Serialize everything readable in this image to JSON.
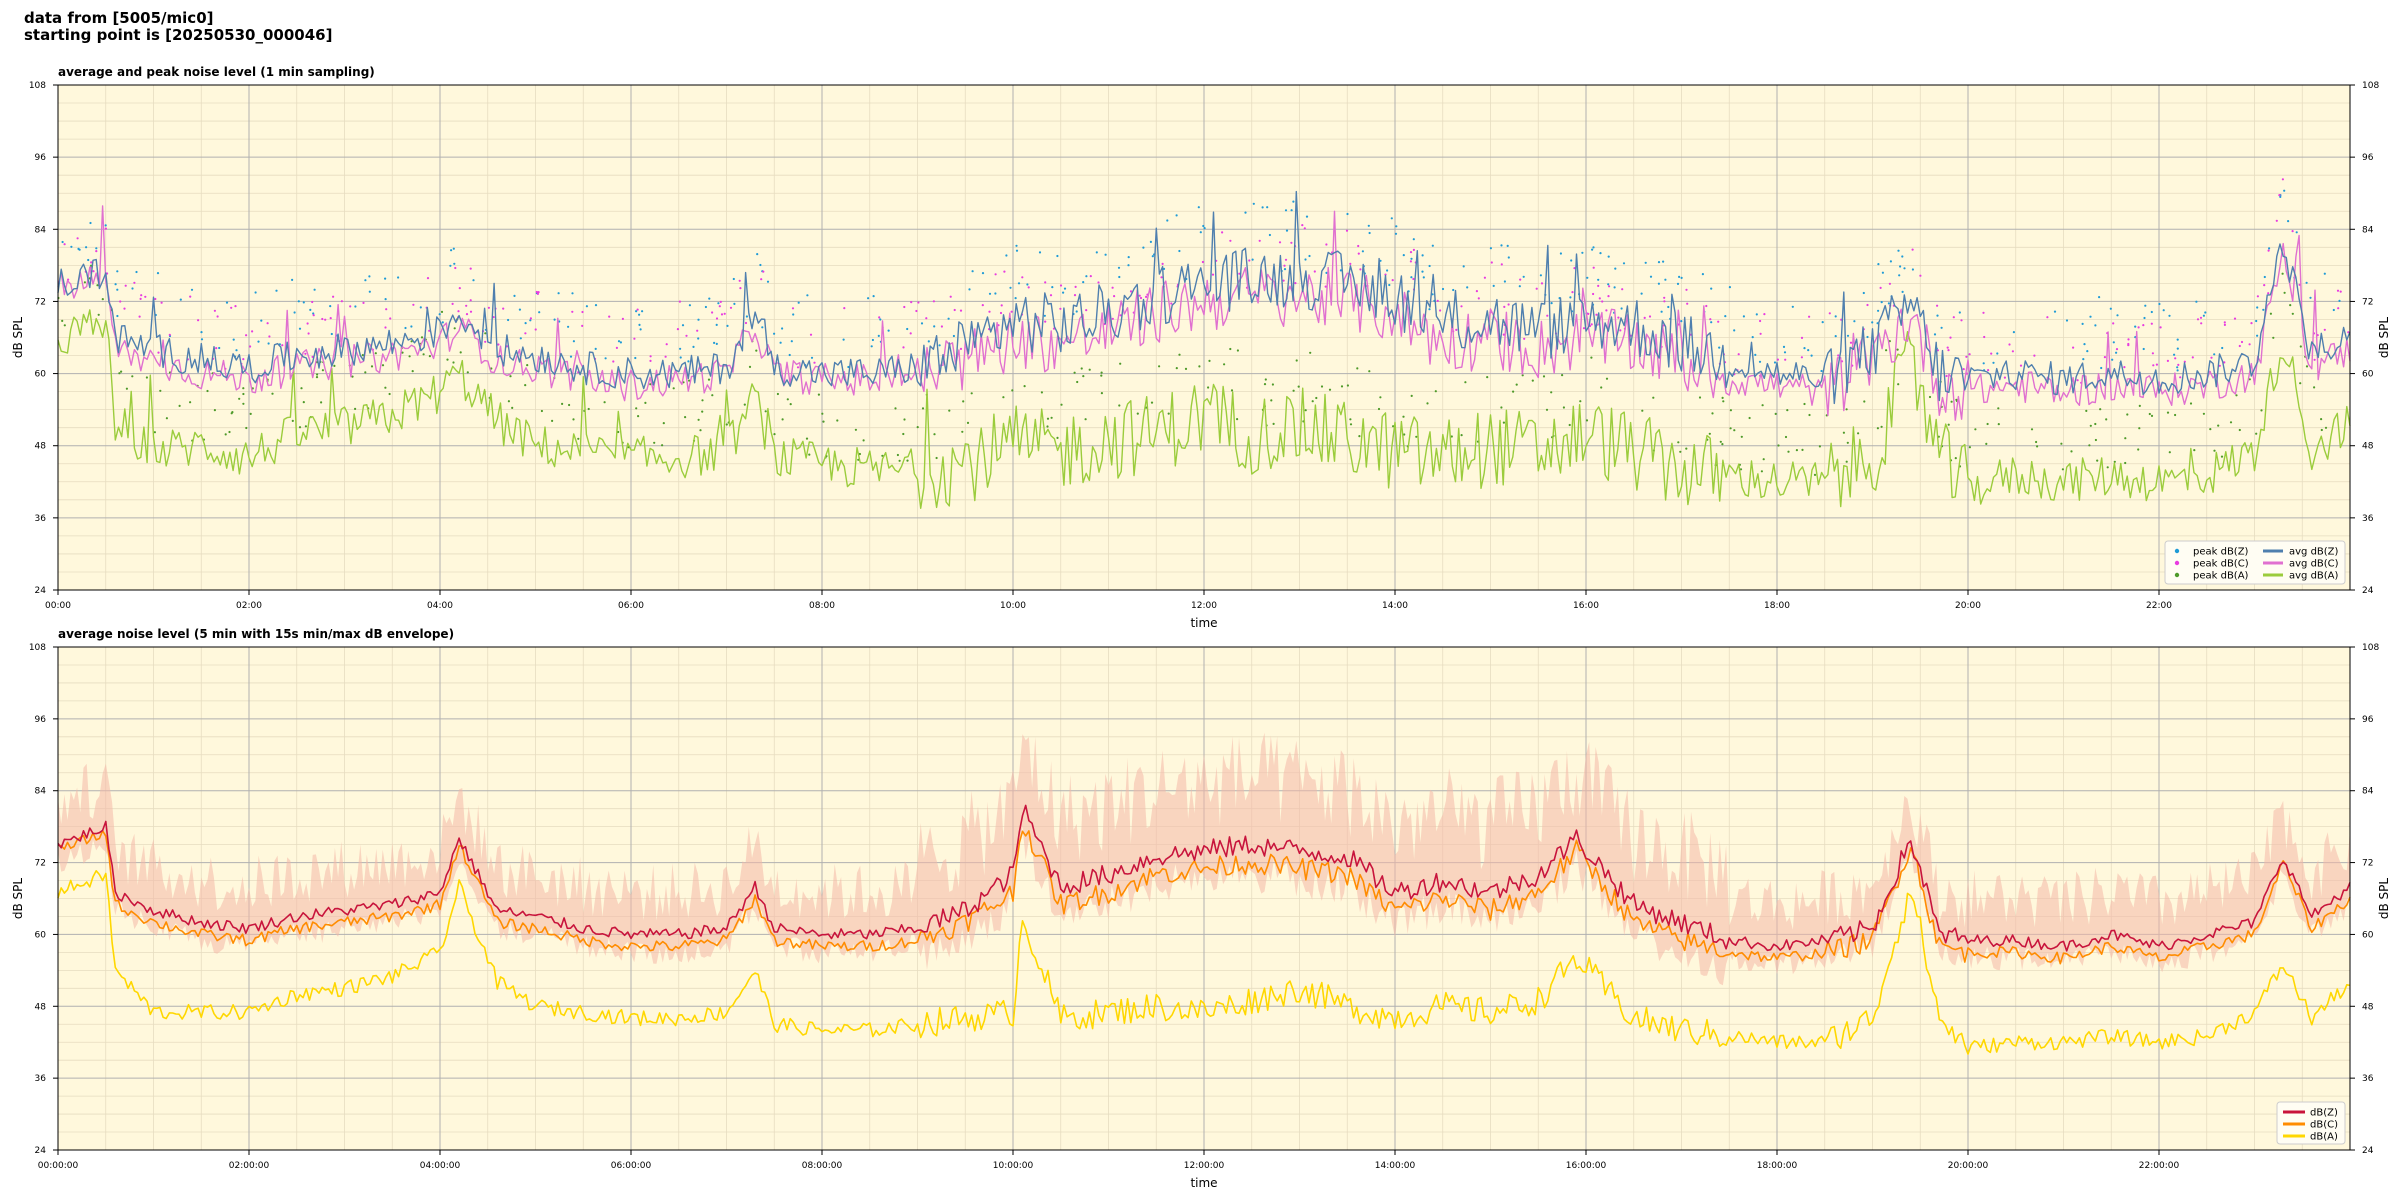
{
  "header": {
    "line1": "data from [5005/mic0]",
    "line2": "starting point is [20250530_000046]"
  },
  "colors": {
    "plot_bg": "#fff8dc",
    "grid_major": "#b0b0b0",
    "grid_minor": "#e6dcc0",
    "peak_z": "#1f9bd6",
    "peak_c": "#e83ce0",
    "peak_a": "#4e9a2a",
    "avg_z": "#4f7fae",
    "avg_c": "#e070d0",
    "avg_a": "#9bcc3c",
    "dbz": "#c8143c",
    "dbc": "#ff8c00",
    "dba": "#ffd700",
    "envelope": "#f4b8a8"
  },
  "chart_data": [
    {
      "type": "line",
      "title": "average and peak noise level (1 min sampling)",
      "xlabel": "time",
      "ylabel": "dB SPL",
      "xlim": [
        0,
        24
      ],
      "ylim": [
        24,
        108
      ],
      "yticks": [
        24,
        36,
        48,
        60,
        72,
        84,
        96,
        108
      ],
      "xtick_labels": [
        "00:00",
        "02:00",
        "04:00",
        "06:00",
        "08:00",
        "10:00",
        "12:00",
        "14:00",
        "16:00",
        "18:00",
        "20:00",
        "22:00"
      ],
      "grid": true,
      "legend_position": "bottom-right",
      "legend": [
        "peak dB(Z)",
        "peak dB(C)",
        "peak dB(A)",
        "avg dB(Z)",
        "avg dB(C)",
        "avg dB(A)"
      ],
      "series": [
        {
          "name": "avg dB(Z)",
          "x": [
            0,
            0.5,
            0.6,
            1,
            1.5,
            2,
            2.5,
            3,
            3.5,
            4,
            4.2,
            4.6,
            5,
            5.5,
            6,
            6.5,
            7,
            7.3,
            7.5,
            8,
            8.5,
            9,
            9.5,
            10,
            10.5,
            11,
            11.5,
            12,
            12.5,
            13,
            13.5,
            14,
            14.5,
            15,
            15.5,
            16,
            16.5,
            17,
            17.5,
            18,
            18.5,
            19,
            19.4,
            19.7,
            20,
            20.5,
            21,
            21.5,
            22,
            22.5,
            23,
            23.3,
            23.6,
            24
          ],
          "values": [
            75,
            77,
            66,
            64,
            62,
            61,
            63,
            64,
            65,
            67,
            70,
            64,
            63,
            61,
            60,
            60,
            61,
            70,
            61,
            60,
            60,
            61,
            64,
            69,
            68,
            70,
            73,
            75,
            76,
            76,
            75,
            73,
            68,
            69,
            67,
            69,
            68,
            65,
            62,
            60,
            59,
            64,
            72,
            60,
            59,
            60,
            59,
            60,
            59,
            60,
            62,
            82,
            63,
            66
          ]
        },
        {
          "name": "avg dB(C)",
          "x": [
            0,
            0.5,
            0.6,
            1,
            1.5,
            2,
            2.5,
            3,
            3.5,
            4,
            4.2,
            4.6,
            5,
            5.5,
            6,
            6.5,
            7,
            7.3,
            7.5,
            8,
            8.5,
            9,
            9.5,
            10,
            10.5,
            11,
            11.5,
            12,
            12.5,
            13,
            13.5,
            14,
            14.5,
            15,
            15.5,
            16,
            16.5,
            17,
            17.5,
            18,
            18.5,
            19,
            19.4,
            19.7,
            20,
            20.5,
            21,
            21.5,
            22,
            22.5,
            23,
            23.3,
            23.6,
            24
          ],
          "values": [
            74,
            76,
            64,
            62,
            60,
            59,
            61,
            62,
            63,
            65,
            68,
            62,
            61,
            59,
            58,
            59,
            60,
            68,
            60,
            59,
            59,
            60,
            62,
            66,
            65,
            67,
            70,
            72,
            73,
            73,
            72,
            70,
            65,
            66,
            64,
            66,
            65,
            62,
            59,
            58,
            57,
            62,
            70,
            58,
            57,
            58,
            57,
            58,
            57,
            58,
            60,
            80,
            61,
            64
          ]
        },
        {
          "name": "avg dB(A)",
          "x": [
            0,
            0.5,
            0.6,
            1,
            1.5,
            2,
            2.5,
            3,
            3.5,
            4,
            4.2,
            4.6,
            5,
            5.5,
            6,
            6.5,
            7,
            7.3,
            7.5,
            8,
            8.5,
            9,
            9.5,
            10,
            10.5,
            11,
            11.5,
            12,
            12.5,
            13,
            13.5,
            14,
            14.5,
            15,
            15.5,
            16,
            16.5,
            17,
            17.5,
            18,
            18.5,
            19,
            19.4,
            19.7,
            20,
            20.5,
            21,
            21.5,
            22,
            22.5,
            23,
            23.3,
            23.6,
            24
          ],
          "values": [
            66,
            68,
            52,
            47,
            48,
            46,
            50,
            51,
            53,
            57,
            60,
            52,
            48,
            47,
            46,
            46,
            47,
            56,
            46,
            45,
            44,
            44,
            45,
            48,
            47,
            49,
            50,
            53,
            50,
            51,
            49,
            47,
            46,
            48,
            47,
            50,
            47,
            44,
            43,
            42,
            42,
            46,
            62,
            46,
            41,
            43,
            42,
            43,
            42,
            43,
            47,
            66,
            47,
            52
          ]
        }
      ]
    },
    {
      "type": "line",
      "title": "average noise level (5 min with 15s min/max dB envelope)",
      "xlabel": "time",
      "ylabel": "dB SPL",
      "xlim": [
        0,
        24
      ],
      "ylim": [
        24,
        108
      ],
      "yticks": [
        24,
        36,
        48,
        60,
        72,
        84,
        96,
        108
      ],
      "xtick_labels": [
        "00:00:00",
        "02:00:00",
        "04:00:00",
        "06:00:00",
        "08:00:00",
        "10:00:00",
        "12:00:00",
        "14:00:00",
        "16:00:00",
        "18:00:00",
        "20:00:00",
        "22:00:00"
      ],
      "grid": true,
      "legend_position": "bottom-right",
      "legend": [
        "dB(Z)",
        "dB(C)",
        "dB(A)"
      ],
      "series": [
        {
          "name": "dB(Z)",
          "x": [
            0,
            0.5,
            0.6,
            1,
            1.5,
            2,
            2.5,
            3,
            3.5,
            4,
            4.2,
            4.6,
            5,
            5.5,
            6,
            6.5,
            7,
            7.3,
            7.5,
            8,
            8.5,
            9,
            9.5,
            10,
            10.1,
            10.5,
            11,
            11.5,
            12,
            12.5,
            13,
            13.5,
            14,
            14.5,
            15,
            15.5,
            15.9,
            16.5,
            17,
            17.5,
            18,
            18.5,
            19,
            19.4,
            19.7,
            20,
            20.5,
            21,
            21.5,
            22,
            22.5,
            23,
            23.3,
            23.6,
            24
          ],
          "values": [
            75,
            78,
            67,
            64,
            62,
            61,
            63,
            64,
            65,
            67,
            76,
            64,
            63,
            61,
            60,
            60,
            61,
            68,
            61,
            60,
            60,
            61,
            64,
            70,
            81,
            68,
            70,
            73,
            74,
            75,
            74,
            73,
            67,
            69,
            67,
            70,
            76,
            65,
            62,
            59,
            58,
            59,
            61,
            76,
            60,
            59,
            59,
            58,
            60,
            58,
            60,
            62,
            73,
            63,
            68
          ]
        },
        {
          "name": "dB(C)",
          "x": [
            0,
            0.5,
            0.6,
            1,
            1.5,
            2,
            2.5,
            3,
            3.5,
            4,
            4.2,
            4.6,
            5,
            5.5,
            6,
            6.5,
            7,
            7.3,
            7.5,
            8,
            8.5,
            9,
            9.5,
            10,
            10.1,
            10.5,
            11,
            11.5,
            12,
            12.5,
            13,
            13.5,
            14,
            14.5,
            15,
            15.5,
            15.9,
            16.5,
            17,
            17.5,
            18,
            18.5,
            19,
            19.4,
            19.7,
            20,
            20.5,
            21,
            21.5,
            22,
            22.5,
            23,
            23.3,
            23.6,
            24
          ],
          "values": [
            74,
            77,
            65,
            62,
            60,
            59,
            61,
            62,
            63,
            65,
            75,
            62,
            61,
            59,
            58,
            58,
            59,
            66,
            59,
            58,
            58,
            59,
            62,
            67,
            79,
            65,
            67,
            70,
            71,
            72,
            71,
            70,
            64,
            66,
            64,
            67,
            74,
            62,
            59,
            57,
            56,
            57,
            59,
            75,
            58,
            57,
            57,
            56,
            58,
            56,
            58,
            60,
            72,
            61,
            66
          ]
        },
        {
          "name": "dB(A)",
          "x": [
            0,
            0.5,
            0.6,
            1,
            1.5,
            2,
            2.5,
            3,
            3.5,
            4,
            4.2,
            4.6,
            5,
            5.5,
            6,
            6.5,
            7,
            7.3,
            7.5,
            8,
            8.5,
            9,
            9.5,
            10,
            10.1,
            10.5,
            11,
            11.5,
            12,
            12.5,
            13,
            13.5,
            14,
            14.5,
            15,
            15.5,
            15.9,
            16.5,
            17,
            17.5,
            18,
            18.5,
            19,
            19.4,
            19.7,
            20,
            20.5,
            21,
            21.5,
            22,
            22.5,
            23,
            23.3,
            23.6,
            24
          ],
          "values": [
            67,
            70,
            54,
            47,
            47,
            47,
            50,
            51,
            53,
            57,
            68,
            52,
            48,
            47,
            46,
            46,
            47,
            54,
            45,
            44,
            44,
            45,
            46,
            47,
            63,
            46,
            47,
            48,
            47,
            49,
            51,
            48,
            46,
            48,
            47,
            49,
            56,
            46,
            44,
            43,
            42,
            42,
            46,
            68,
            46,
            41,
            42,
            42,
            43,
            42,
            43,
            47,
            55,
            46,
            52
          ]
        }
      ]
    }
  ]
}
